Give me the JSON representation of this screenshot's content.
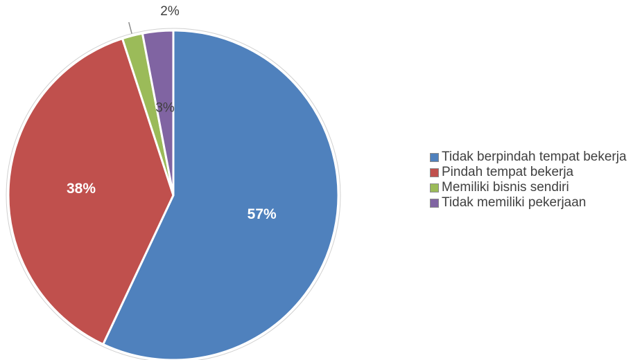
{
  "chart_data": {
    "type": "pie",
    "title": "",
    "slices": [
      {
        "label": "Tidak berpindah tempat bekerja",
        "value": 57,
        "display": "57%",
        "color": "#4F81BD"
      },
      {
        "label": "Pindah tempat bekerja",
        "value": 38,
        "display": "38%",
        "color": "#C0504D"
      },
      {
        "label": "Memiliki bisnis sendiri",
        "value": 2,
        "display": "2%",
        "color": "#9BBB59"
      },
      {
        "label": "Tidak memiliki pekerjaan",
        "value": 3,
        "display": "3%",
        "color": "#8064A2"
      }
    ],
    "legend_position": "right"
  }
}
